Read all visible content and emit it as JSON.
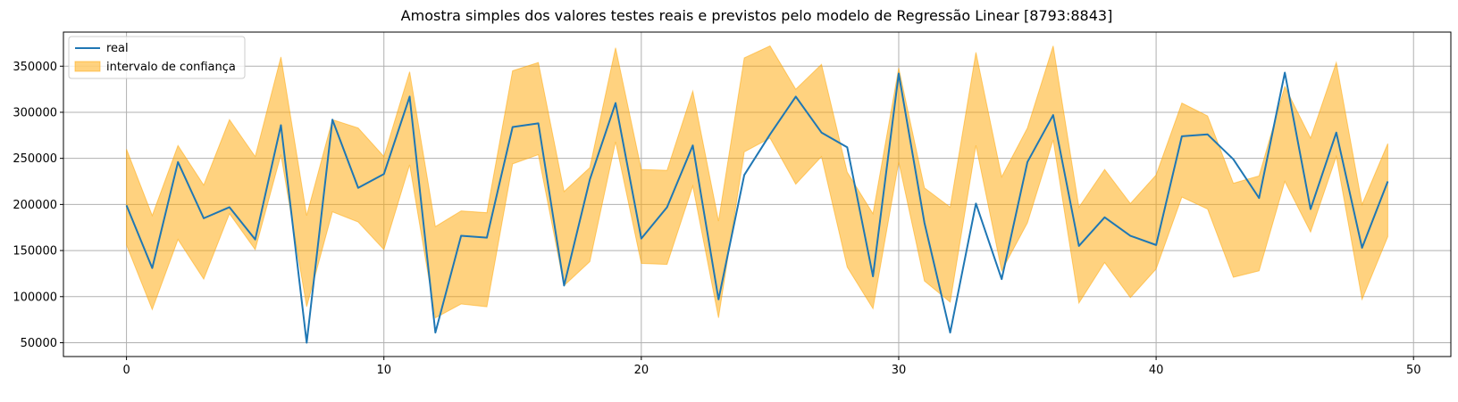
{
  "chart_data": {
    "type": "line",
    "title": "Amostra simples dos valores testes reais e previstos pelo modelo de Regressão Linear [8793:8843]",
    "xlabel": "",
    "ylabel": "",
    "xlim": [
      -2.45,
      51.45
    ],
    "ylim": [
      35000,
      387000
    ],
    "grid": true,
    "legend_position": "top-left",
    "x_ticks": [
      0,
      10,
      20,
      30,
      40,
      50
    ],
    "y_ticks": [
      50000,
      100000,
      150000,
      200000,
      250000,
      300000,
      350000
    ],
    "x": [
      0,
      1,
      2,
      3,
      4,
      5,
      6,
      7,
      8,
      9,
      10,
      11,
      12,
      13,
      14,
      15,
      16,
      17,
      18,
      19,
      20,
      21,
      22,
      23,
      24,
      25,
      26,
      27,
      28,
      29,
      30,
      31,
      32,
      33,
      34,
      35,
      36,
      37,
      38,
      39,
      40,
      41,
      42,
      43,
      44,
      45,
      46,
      47,
      48,
      49
    ],
    "series": [
      {
        "name": "real",
        "kind": "line",
        "color": "#1f77b4",
        "values": [
          199000,
          131000,
          246000,
          185000,
          197000,
          162000,
          286000,
          50000,
          292000,
          218000,
          233000,
          317000,
          61000,
          166000,
          164000,
          284000,
          288000,
          112000,
          227000,
          310000,
          163000,
          197000,
          264000,
          97000,
          232000,
          276000,
          317000,
          278000,
          262000,
          122000,
          342000,
          180000,
          61000,
          201000,
          119000,
          246000,
          297000,
          155000,
          186000,
          166000,
          156000,
          274000,
          276000,
          249000,
          207000,
          343000,
          195000,
          278000,
          153000,
          225000
        ]
      },
      {
        "name": "intervalo de confiança",
        "kind": "band",
        "color": "#ffa500",
        "opacity": 0.5,
        "upper": [
          260000,
          188000,
          264000,
          221000,
          292000,
          252000,
          360000,
          188000,
          292000,
          283000,
          252000,
          344000,
          176000,
          193000,
          191000,
          345000,
          354000,
          214000,
          240000,
          370000,
          238000,
          237000,
          323000,
          182000,
          359000,
          372000,
          325000,
          352000,
          235000,
          190000,
          348000,
          218000,
          197000,
          365000,
          230000,
          283000,
          372000,
          197000,
          238000,
          201000,
          232000,
          310000,
          296000,
          223000,
          231000,
          328000,
          272000,
          354000,
          200000,
          266000
        ],
        "lower": [
          156000,
          86000,
          162000,
          119000,
          190000,
          151000,
          254000,
          89000,
          192000,
          181000,
          151000,
          243000,
          77000,
          92000,
          89000,
          244000,
          254000,
          112000,
          138000,
          268000,
          136000,
          135000,
          220000,
          77000,
          257000,
          272000,
          222000,
          252000,
          132000,
          87000,
          246000,
          117000,
          94000,
          264000,
          128000,
          180000,
          270000,
          93000,
          137000,
          99000,
          130000,
          208000,
          195000,
          121000,
          128000,
          225000,
          170000,
          252000,
          97000,
          165000
        ]
      }
    ]
  }
}
